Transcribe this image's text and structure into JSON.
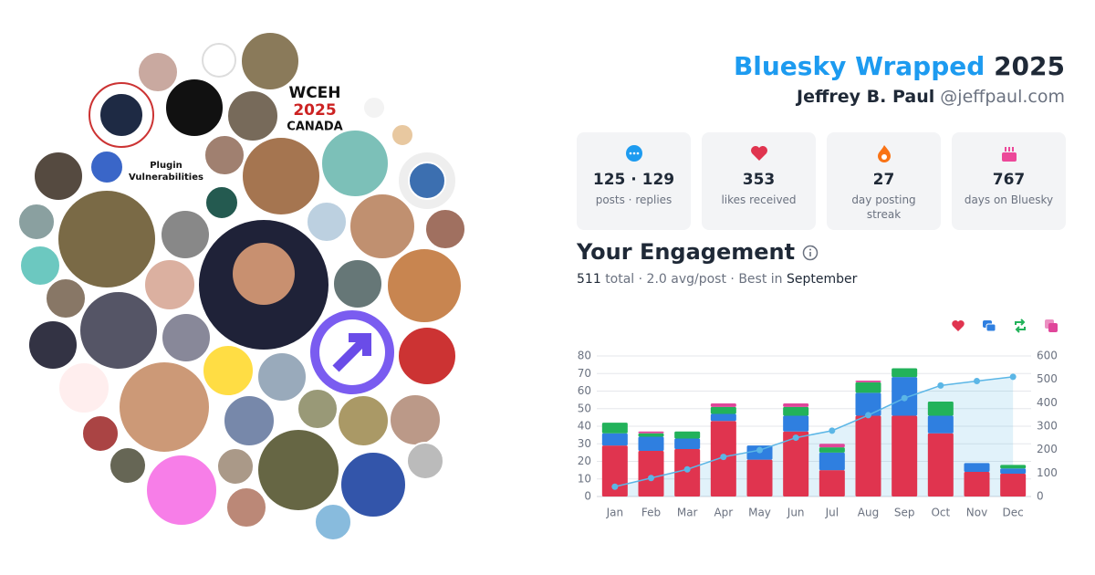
{
  "header": {
    "title": "Bluesky Wrapped",
    "year": "2025",
    "name": "Jeffrey B. Paul",
    "handle": "@jeffpaul.com"
  },
  "stats": [
    {
      "value": "125 · 129",
      "label": "posts · replies"
    },
    {
      "value": 353,
      "label": "likes received"
    },
    {
      "value": 27,
      "label": "day posting streak"
    },
    {
      "value": 767,
      "label": "days on Bluesky"
    }
  ],
  "avatar_labels": [
    "Plugin",
    "Vulnerabilities",
    "WCEH",
    "2025",
    "CANADA"
  ],
  "engagement": {
    "title": "Your Engagement",
    "total": 511,
    "total_label": "total · 2.0 avg/post · Best in",
    "best_month": "September"
  },
  "chart_data": {
    "type": "bar",
    "stacked": true,
    "categories": [
      "Jan",
      "Feb",
      "Mar",
      "Apr",
      "May",
      "Jun",
      "Jul",
      "Aug",
      "Sep",
      "Oct",
      "Nov",
      "Dec"
    ],
    "series": [
      {
        "color": "#e0344f",
        "values": [
          29,
          26,
          27,
          43,
          21,
          37,
          15,
          46,
          46,
          36,
          14,
          13
        ]
      },
      {
        "color": "#2f7fe0",
        "values": [
          7,
          8,
          6,
          4,
          8,
          9,
          10,
          13,
          22,
          10,
          5,
          3
        ]
      },
      {
        "color": "#22b25a",
        "values": [
          6,
          2,
          4,
          4,
          0,
          5,
          3,
          6,
          5,
          8,
          0,
          2
        ]
      },
      {
        "color": "#e0469a",
        "values": [
          0,
          1,
          0,
          2,
          0,
          2,
          2,
          1,
          0,
          0,
          0,
          0
        ]
      },
      {
        "type": "line",
        "axis": "y2",
        "color": "#5bb6e6",
        "values": [
          42,
          79,
          116,
          169,
          198,
          251,
          281,
          347,
          420,
          474,
          493,
          511
        ]
      }
    ],
    "ylim": [
      0,
      80
    ],
    "yticks": [
      0,
      10,
      20,
      30,
      40,
      50,
      60,
      70,
      80
    ],
    "y2lim": [
      0,
      600
    ],
    "y2ticks": [
      0,
      100,
      200,
      300,
      400,
      500,
      600
    ],
    "grid": true
  }
}
